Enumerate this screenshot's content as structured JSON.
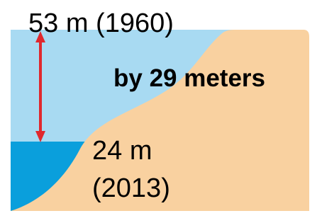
{
  "labels": {
    "top": "53 m (1960)",
    "difference": "by 29 meters",
    "bottom": [
      "24 m",
      "(2013)"
    ]
  }
}
